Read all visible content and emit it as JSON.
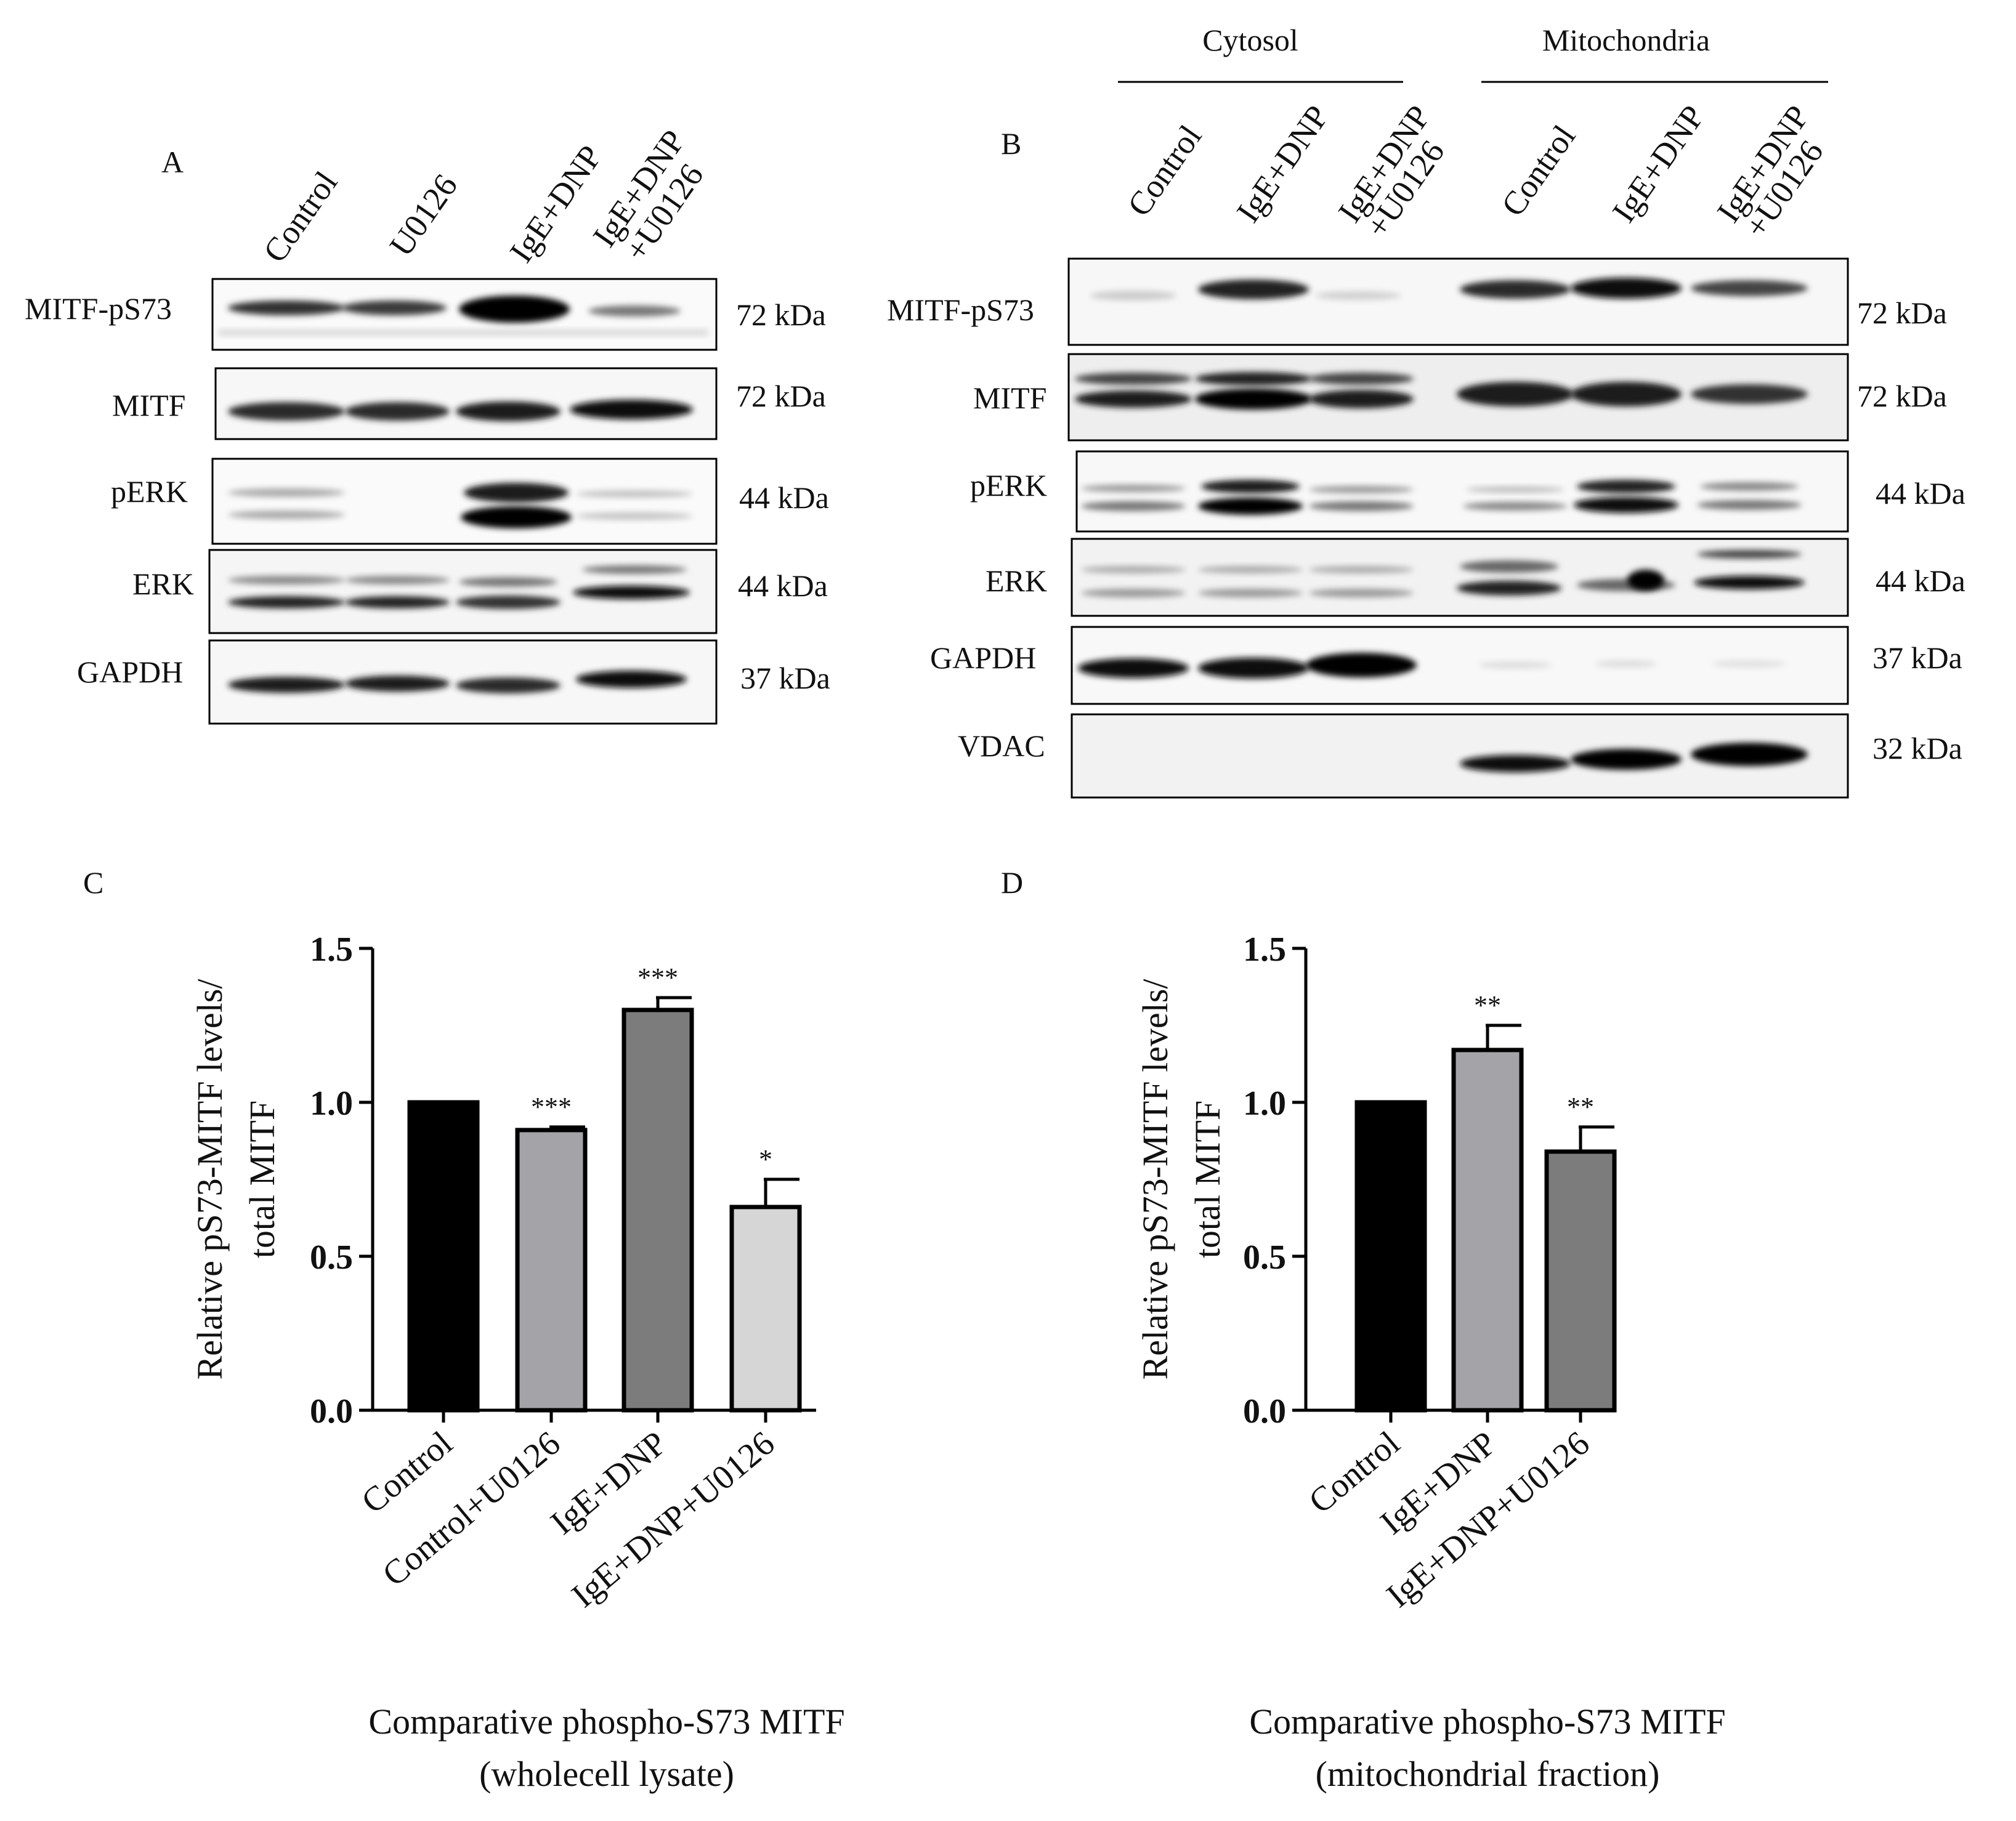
{
  "panel_a": {
    "letter": "A",
    "lanes": [
      "Control",
      "U0126",
      "IgE+DNP",
      "IgE+DNP",
      "+U0126"
    ],
    "blots": [
      {
        "label": "MITF-pS73",
        "size": "72 kDa"
      },
      {
        "label": "MITF",
        "size": "72 kDa"
      },
      {
        "label": "pERK",
        "size": "44  kDa"
      },
      {
        "label": "ERK",
        "size": "44 kDa"
      },
      {
        "label": "GAPDH",
        "size": "37 kDa"
      }
    ]
  },
  "panel_b": {
    "letter": "B",
    "groups": [
      "Cytosol",
      "Mitochondria"
    ],
    "lanes": [
      "Control",
      "IgE+DNP",
      "IgE+DNP",
      "+U0126",
      "Control",
      "IgE+DNP",
      "IgE+DNP",
      "+U0126"
    ],
    "blots": [
      {
        "label": "MITF-pS73",
        "size": "72 kDa"
      },
      {
        "label": "MITF",
        "size": "72 kDa"
      },
      {
        "label": "pERK",
        "size": "44  kDa"
      },
      {
        "label": "ERK",
        "size": "44  kDa"
      },
      {
        "label": "GAPDH",
        "size": "37 kDa"
      },
      {
        "label": "VDAC",
        "size": "32 kDa"
      }
    ]
  },
  "chart_data": [
    {
      "panel": "C",
      "type": "bar",
      "categories": [
        "Control",
        "Control+U0126",
        "IgE+DNP",
        "IgE+DNP+U0126"
      ],
      "values": [
        1.0,
        0.91,
        1.3,
        0.66
      ],
      "errors": [
        0,
        0.01,
        0.04,
        0.09
      ],
      "significance": [
        "",
        "***",
        "***",
        "*"
      ],
      "bar_colors": [
        "#000000",
        "#a3a3a8",
        "#7c7c7c",
        "#d6d6d6"
      ],
      "ylabel_lines": [
        "Relative pS73-MITF levels/",
        "total MITF"
      ],
      "yticks": [
        "0.0",
        "0.5",
        "1.0",
        "1.5"
      ],
      "ylim": [
        0,
        1.5
      ],
      "caption_lines": [
        "Comparative phospho-S73 MITF",
        "(wholecell lysate)"
      ],
      "grid": false
    },
    {
      "panel": "D",
      "type": "bar",
      "categories": [
        "Control",
        "IgE+DNP",
        "IgE+DNP+U0126"
      ],
      "values": [
        1.0,
        1.17,
        0.84
      ],
      "errors": [
        0,
        0.08,
        0.08
      ],
      "significance": [
        "",
        "**",
        "**"
      ],
      "bar_colors": [
        "#000000",
        "#a3a3a8",
        "#7c7c7c"
      ],
      "ylabel_lines": [
        "Relative pS73-MITF levels/",
        "total MITF"
      ],
      "yticks": [
        "0.0",
        "0.5",
        "1.0",
        "1.5"
      ],
      "ylim": [
        0,
        1.5
      ],
      "caption_lines": [
        "Comparative phospho-S73 MITF",
        "(mitochondrial fraction)"
      ],
      "grid": false
    }
  ]
}
